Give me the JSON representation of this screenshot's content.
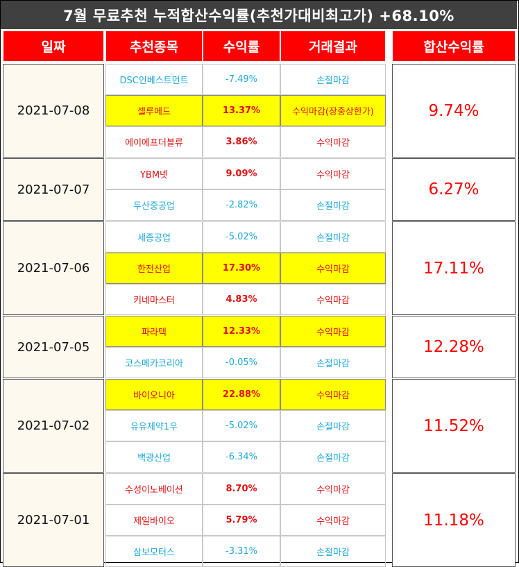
{
  "title": "7월 무료추천 누적합산수익률(추천가대비최고가) +68.10%",
  "headers": [
    "일짜",
    "추천종목",
    "수익률",
    "거래결과",
    "합산수익률"
  ],
  "colors": {
    "header_bg": "#ff0000",
    "title_bg": "#404040",
    "highlight": "#ffff00",
    "gain": "#e01010",
    "loss": "#1ea7d8"
  },
  "groups": [
    {
      "date": "2021-07-08",
      "total": "9.74%",
      "rows": [
        {
          "name": "DSC인베스트먼트",
          "pct": "-7.49%",
          "result": "손절마감",
          "gain": false,
          "highlight": false
        },
        {
          "name": "셀루메드",
          "pct": "13.37%",
          "result": "수익마감(장중상한가)",
          "gain": true,
          "highlight": true
        },
        {
          "name": "에이에프더블류",
          "pct": "3.86%",
          "result": "수익마감",
          "gain": true,
          "highlight": false
        }
      ]
    },
    {
      "date": "2021-07-07",
      "total": "6.27%",
      "rows": [
        {
          "name": "YBM넷",
          "pct": "9.09%",
          "result": "수익마감",
          "gain": true,
          "highlight": false
        },
        {
          "name": "두산중공업",
          "pct": "-2.82%",
          "result": "손절마감",
          "gain": false,
          "highlight": false
        }
      ]
    },
    {
      "date": "2021-07-06",
      "total": "17.11%",
      "rows": [
        {
          "name": "세종공업",
          "pct": "-5.02%",
          "result": "손절마감",
          "gain": false,
          "highlight": false
        },
        {
          "name": "한전산업",
          "pct": "17.30%",
          "result": "수익마감",
          "gain": true,
          "highlight": true
        },
        {
          "name": "키네마스터",
          "pct": "4.83%",
          "result": "수익마감",
          "gain": true,
          "highlight": false
        }
      ]
    },
    {
      "date": "2021-07-05",
      "total": "12.28%",
      "rows": [
        {
          "name": "파라텍",
          "pct": "12.33%",
          "result": "수익마감",
          "gain": true,
          "highlight": true
        },
        {
          "name": "코스메카코리아",
          "pct": "-0.05%",
          "result": "손절마감",
          "gain": false,
          "highlight": false
        }
      ]
    },
    {
      "date": "2021-07-02",
      "total": "11.52%",
      "rows": [
        {
          "name": "바이오니아",
          "pct": "22.88%",
          "result": "수익마감",
          "gain": true,
          "highlight": true
        },
        {
          "name": "유유제약1우",
          "pct": "-5.02%",
          "result": "손절마감",
          "gain": false,
          "highlight": false
        },
        {
          "name": "백광산업",
          "pct": "-6.34%",
          "result": "손절마감",
          "gain": false,
          "highlight": false
        }
      ]
    },
    {
      "date": "2021-07-01",
      "total": "11.18%",
      "rows": [
        {
          "name": "수성이노베이션",
          "pct": "8.70%",
          "result": "수익마감",
          "gain": true,
          "highlight": false
        },
        {
          "name": "제일바이오",
          "pct": "5.79%",
          "result": "수익마감",
          "gain": true,
          "highlight": false
        },
        {
          "name": "삼보모터스",
          "pct": "-3.31%",
          "result": "손절마감",
          "gain": false,
          "highlight": false
        }
      ]
    }
  ]
}
